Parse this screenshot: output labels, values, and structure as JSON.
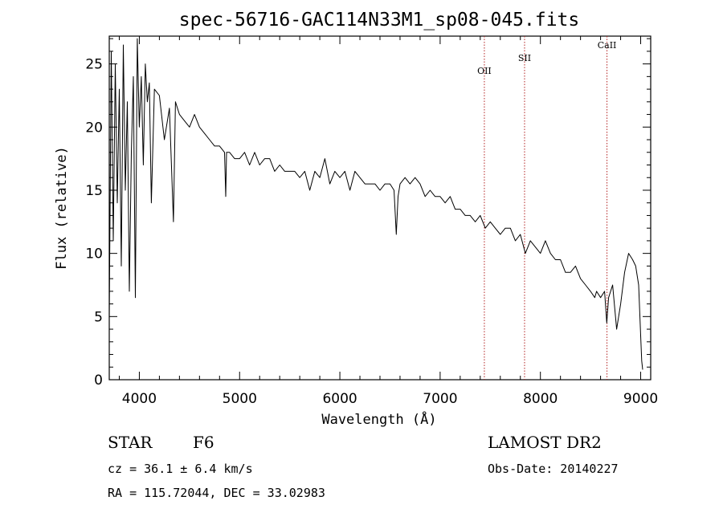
{
  "chart_data": {
    "type": "line",
    "title": "spec-56716-GAC114N33M1_sp08-045.fits",
    "xlabel": "Wavelength (Å)",
    "ylabel": "Flux (relative)",
    "xlim": [
      3700,
      9100
    ],
    "ylim": [
      0,
      27.2
    ],
    "xticks": [
      4000,
      5000,
      6000,
      7000,
      8000,
      9000
    ],
    "yticks": [
      0,
      5,
      10,
      15,
      20,
      25
    ],
    "grid": false,
    "series": [
      {
        "x": [
          3700,
          3720,
          3740,
          3760,
          3780,
          3800,
          3820,
          3840,
          3860,
          3880,
          3900,
          3920,
          3940,
          3960,
          3980,
          4000,
          4020,
          4040,
          4060,
          4080,
          4100,
          4120,
          4150,
          4200,
          4250,
          4300,
          4340,
          4360,
          4400,
          4450,
          4500,
          4550,
          4600,
          4650,
          4700,
          4750,
          4800,
          4850,
          4862,
          4870,
          4900,
          4950,
          5000,
          5050,
          5100,
          5150,
          5200,
          5250,
          5300,
          5350,
          5400,
          5450,
          5500,
          5550,
          5600,
          5650,
          5700,
          5750,
          5800,
          5850,
          5900,
          5950,
          6000,
          6050,
          6100,
          6150,
          6200,
          6250,
          6300,
          6350,
          6400,
          6450,
          6500,
          6540,
          6563,
          6580,
          6600,
          6650,
          6700,
          6750,
          6800,
          6850,
          6900,
          6950,
          7000,
          7050,
          7100,
          7150,
          7200,
          7250,
          7300,
          7350,
          7400,
          7450,
          7500,
          7550,
          7600,
          7650,
          7700,
          7750,
          7800,
          7850,
          7900,
          7950,
          8000,
          8050,
          8100,
          8150,
          8200,
          8250,
          8300,
          8350,
          8400,
          8450,
          8500,
          8542,
          8560,
          8600,
          8640,
          8662,
          8680,
          8720,
          8760,
          8800,
          8840,
          8880,
          8920,
          8950,
          8980,
          9000,
          9010,
          9020
        ],
        "y": [
          5.0,
          26.0,
          11.0,
          25.0,
          14.0,
          23.0,
          9.0,
          26.5,
          15.0,
          22.0,
          7.0,
          18.0,
          24.0,
          6.5,
          27.0,
          20.0,
          24.0,
          17.0,
          25.0,
          22.0,
          23.5,
          14.0,
          23.0,
          22.5,
          19.0,
          21.5,
          12.5,
          22.0,
          21.0,
          20.5,
          20.0,
          21.0,
          20.0,
          19.5,
          19.0,
          18.5,
          18.5,
          18.0,
          14.5,
          18.0,
          18.0,
          17.5,
          17.5,
          18.0,
          17.0,
          18.0,
          17.0,
          17.5,
          17.5,
          16.5,
          17.0,
          16.5,
          16.5,
          16.5,
          16.0,
          16.5,
          15.0,
          16.5,
          16.0,
          17.5,
          15.5,
          16.5,
          16.0,
          16.5,
          15.0,
          16.5,
          16.0,
          15.5,
          15.5,
          15.5,
          15.0,
          15.5,
          15.5,
          15.0,
          11.5,
          14.5,
          15.5,
          16.0,
          15.5,
          16.0,
          15.5,
          14.5,
          15.0,
          14.5,
          14.5,
          14.0,
          14.5,
          13.5,
          13.5,
          13.0,
          13.0,
          12.5,
          13.0,
          12.0,
          12.5,
          12.0,
          11.5,
          12.0,
          12.0,
          11.0,
          11.5,
          10.0,
          11.0,
          10.5,
          10.0,
          11.0,
          10.0,
          9.5,
          9.5,
          8.5,
          8.5,
          9.0,
          8.0,
          7.5,
          7.0,
          6.5,
          7.0,
          6.5,
          7.0,
          4.5,
          6.5,
          7.5,
          4.0,
          6.0,
          8.5,
          10.0,
          9.5,
          9.0,
          7.5,
          3.5,
          1.5,
          0.8
        ]
      }
    ],
    "lines": [
      {
        "label": "OII",
        "x": 7441
      },
      {
        "label": "SII",
        "x": 7842
      },
      {
        "label": "CaII",
        "x": 8664
      }
    ]
  },
  "info": {
    "object_class": "STAR",
    "subclass": "F6",
    "survey": "LAMOST DR2",
    "cz": "cz = 36.1 ± 6.4 km/s",
    "obs_date": "Obs-Date: 20140227",
    "coords": "RA = 115.72044, DEC =  33.02983"
  },
  "colors": {
    "spectrum": "#000000",
    "emission_line": "#b22222",
    "axes": "#000000"
  }
}
